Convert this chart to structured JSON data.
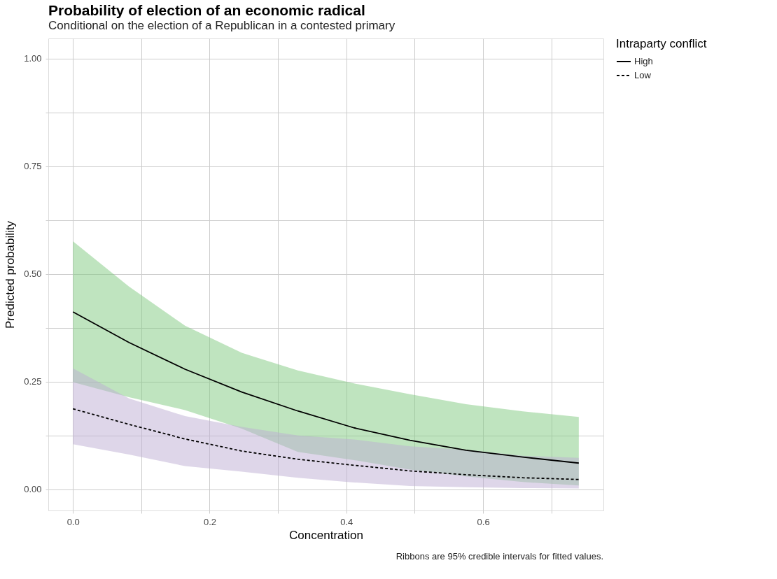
{
  "chart_data": {
    "type": "line",
    "title": "Probability of election of an economic radical",
    "subtitle": "Conditional on the election of a Republican in a contested primary",
    "xlabel": "Concentration",
    "ylabel": "Predicted probability",
    "legend_title": "Intraparty conflict",
    "x": [
      0,
      0.082,
      0.164,
      0.247,
      0.329,
      0.411,
      0.493,
      0.575,
      0.658,
      0.74
    ],
    "series": [
      {
        "name": "High",
        "color": "#000000",
        "line_style": "solid",
        "values": [
          0.412,
          0.341,
          0.279,
          0.226,
          0.182,
          0.143,
          0.114,
          0.091,
          0.075,
          0.061
        ],
        "lower": [
          0.249,
          0.214,
          0.184,
          0.141,
          0.087,
          0.068,
          0.046,
          0.03,
          0.017,
          0.009
        ],
        "upper": [
          0.576,
          0.471,
          0.38,
          0.317,
          0.276,
          0.246,
          0.221,
          0.198,
          0.181,
          0.168
        ]
      },
      {
        "name": "Low",
        "color": "#000000",
        "line_style": "dashed",
        "values": [
          0.187,
          0.151,
          0.117,
          0.089,
          0.07,
          0.056,
          0.043,
          0.034,
          0.027,
          0.023
        ],
        "lower": [
          0.105,
          0.081,
          0.054,
          0.041,
          0.027,
          0.016,
          0.008,
          0.005,
          0.003,
          0.002
        ],
        "upper": [
          0.281,
          0.211,
          0.17,
          0.145,
          0.125,
          0.116,
          0.1,
          0.092,
          0.078,
          0.073
        ]
      }
    ],
    "xlim": [
      -0.036,
      0.776
    ],
    "ylim": [
      -0.049,
      1.047
    ],
    "xticks": [
      {
        "value": 0,
        "label": "0.0"
      },
      {
        "value": 0.1,
        "label": null
      },
      {
        "value": 0.2,
        "label": "0.2"
      },
      {
        "value": 0.3,
        "label": null
      },
      {
        "value": 0.4,
        "label": "0.4"
      },
      {
        "value": 0.5,
        "label": null
      },
      {
        "value": 0.6,
        "label": "0.6"
      },
      {
        "value": 0.7,
        "label": null
      }
    ],
    "yticks": [
      {
        "value": 0,
        "label": "0.00"
      },
      {
        "value": 0.125,
        "label": null
      },
      {
        "value": 0.25,
        "label": "0.25"
      },
      {
        "value": 0.375,
        "label": null
      },
      {
        "value": 0.5,
        "label": "0.50"
      },
      {
        "value": 0.625,
        "label": null
      },
      {
        "value": 0.75,
        "label": "0.75"
      },
      {
        "value": 0.875,
        "label": null
      },
      {
        "value": 1,
        "label": "1.00"
      }
    ],
    "colors": [
      "#7fc97f",
      "#beaed4"
    ],
    "grid": true,
    "legend": "right",
    "annotations": [
      "Ribbons are 95% credible intervals for fitted values."
    ]
  }
}
